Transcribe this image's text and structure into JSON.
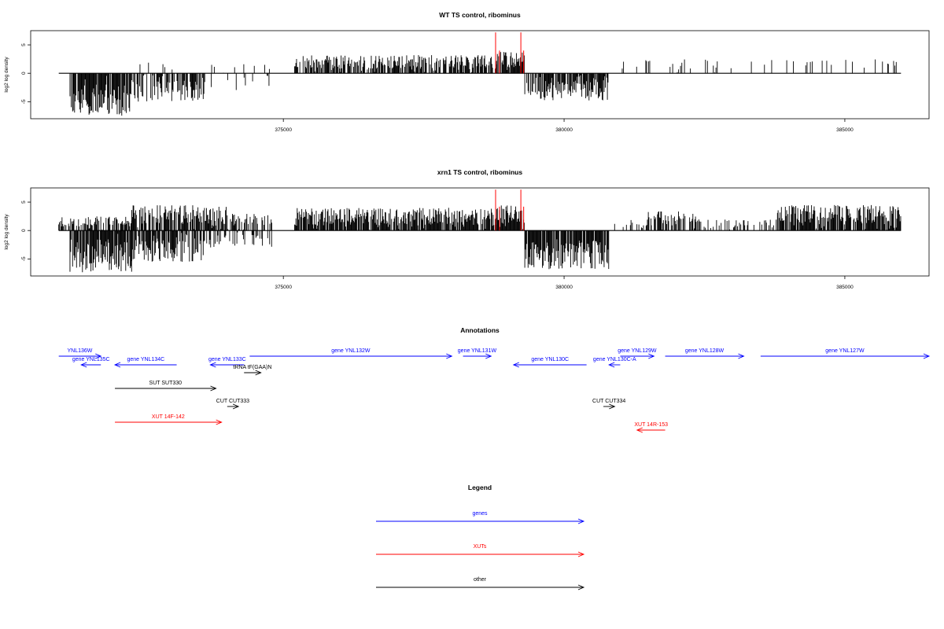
{
  "chart_data": [
    {
      "type": "bar",
      "title": "WT TS control, ribominus",
      "ylabel": "log2 log density",
      "ylim": [
        -8,
        7.5
      ],
      "yticks": [
        -5,
        0,
        5
      ],
      "xlim": [
        370500,
        386500
      ],
      "xticks": [
        375000,
        380000,
        385000
      ],
      "track_range": [
        371000,
        386000
      ],
      "grid": false,
      "colors": {
        "density": "#000000",
        "peaks": "#ff0000"
      },
      "red_peaks": [
        {
          "x": 378780,
          "value": 7.2
        },
        {
          "x": 378850,
          "value": 4.0
        },
        {
          "x": 379230,
          "value": 7.2
        },
        {
          "x": 379280,
          "value": 4.0
        }
      ],
      "regions": [
        {
          "start": 371200,
          "end": 372300,
          "sign": -1,
          "density": 0.85,
          "max": 7.5
        },
        {
          "start": 372300,
          "end": 373600,
          "sign": -1,
          "density": 0.6,
          "max": 5.0
        },
        {
          "start": 372400,
          "end": 373400,
          "sign": 1,
          "density": 0.12,
          "max": 2.0
        },
        {
          "start": 373600,
          "end": 374800,
          "sign": -1,
          "density": 0.08,
          "max": 3.0
        },
        {
          "start": 373700,
          "end": 374800,
          "sign": 1,
          "density": 0.05,
          "max": 2.0
        },
        {
          "start": 375200,
          "end": 378800,
          "sign": 1,
          "density": 0.75,
          "max": 3.2
        },
        {
          "start": 378800,
          "end": 379300,
          "sign": 1,
          "density": 0.9,
          "max": 3.8
        },
        {
          "start": 379300,
          "end": 380800,
          "sign": -1,
          "density": 0.8,
          "max": 4.8
        },
        {
          "start": 381000,
          "end": 386000,
          "sign": 1,
          "density": 0.1,
          "max": 2.5
        }
      ]
    },
    {
      "type": "bar",
      "title": "xrn1 TS control, ribominus",
      "ylabel": "log2 log density",
      "ylim": [
        -8,
        7.5
      ],
      "yticks": [
        -5,
        0,
        5
      ],
      "xlim": [
        370500,
        386500
      ],
      "xticks": [
        375000,
        380000,
        385000
      ],
      "track_range": [
        371000,
        386000
      ],
      "grid": false,
      "colors": {
        "density": "#000000",
        "peaks": "#ff0000"
      },
      "red_peaks": [
        {
          "x": 378780,
          "value": 7.2
        },
        {
          "x": 378850,
          "value": 4.2
        },
        {
          "x": 379230,
          "value": 7.2
        },
        {
          "x": 379280,
          "value": 4.2
        }
      ],
      "regions": [
        {
          "start": 371000,
          "end": 371200,
          "sign": 1,
          "density": 0.6,
          "max": 2.5
        },
        {
          "start": 371200,
          "end": 372300,
          "sign": -1,
          "density": 0.9,
          "max": 7.5
        },
        {
          "start": 371200,
          "end": 372300,
          "sign": 1,
          "density": 0.5,
          "max": 2.5
        },
        {
          "start": 372300,
          "end": 373600,
          "sign": -1,
          "density": 0.8,
          "max": 5.5
        },
        {
          "start": 372300,
          "end": 374000,
          "sign": 1,
          "density": 0.7,
          "max": 4.5
        },
        {
          "start": 373600,
          "end": 374800,
          "sign": -1,
          "density": 0.4,
          "max": 3.0
        },
        {
          "start": 374000,
          "end": 374800,
          "sign": 1,
          "density": 0.5,
          "max": 3.0
        },
        {
          "start": 375200,
          "end": 378800,
          "sign": 1,
          "density": 0.85,
          "max": 4.0
        },
        {
          "start": 378800,
          "end": 379300,
          "sign": 1,
          "density": 0.95,
          "max": 4.5
        },
        {
          "start": 379300,
          "end": 380800,
          "sign": -1,
          "density": 0.9,
          "max": 6.8
        },
        {
          "start": 380900,
          "end": 381600,
          "sign": 1,
          "density": 0.3,
          "max": 2.0
        },
        {
          "start": 381500,
          "end": 382400,
          "sign": 1,
          "density": 0.7,
          "max": 3.5
        },
        {
          "start": 382400,
          "end": 383800,
          "sign": 1,
          "density": 0.2,
          "max": 2.0
        },
        {
          "start": 383800,
          "end": 386000,
          "sign": 1,
          "density": 0.85,
          "max": 4.5
        }
      ]
    }
  ],
  "annotations": {
    "title": "Annotations",
    "features": [
      {
        "label": "YNL136W",
        "start": 371000,
        "end": 371750,
        "strand": "+",
        "row": 0,
        "color": "#0000ff"
      },
      {
        "label": "gene YNL135C",
        "start": 371400,
        "end": 371750,
        "strand": "-",
        "row": 1,
        "color": "#0000ff"
      },
      {
        "label": "gene YNL134C",
        "start": 372000,
        "end": 373100,
        "strand": "-",
        "row": 1,
        "color": "#0000ff"
      },
      {
        "label": "gene YNL133C",
        "start": 373700,
        "end": 374300,
        "strand": "-",
        "row": 1,
        "color": "#0000ff"
      },
      {
        "label": "tRNA tF(GAA)N",
        "start": 374300,
        "end": 374600,
        "strand": "+",
        "row": 2,
        "color": "#000000"
      },
      {
        "label": "gene YNL132W",
        "start": 374400,
        "end": 378000,
        "strand": "+",
        "row": 0,
        "color": "#0000ff"
      },
      {
        "label": "gene YNL131W",
        "start": 378200,
        "end": 378700,
        "strand": "+",
        "row": 0,
        "color": "#0000ff"
      },
      {
        "label": "gene YNL130C",
        "start": 379100,
        "end": 380400,
        "strand": "-",
        "row": 1,
        "color": "#0000ff"
      },
      {
        "label": "gene YNL130C-A",
        "start": 380800,
        "end": 381000,
        "strand": "-",
        "row": 1,
        "color": "#0000ff"
      },
      {
        "label": "gene YNL129W",
        "start": 381000,
        "end": 381600,
        "strand": "+",
        "row": 0,
        "color": "#0000ff"
      },
      {
        "label": "gene YNL128W",
        "start": 381800,
        "end": 383200,
        "strand": "+",
        "row": 0,
        "color": "#0000ff"
      },
      {
        "label": "gene YNL127W",
        "start": 383500,
        "end": 386500,
        "strand": "+",
        "row": 0,
        "color": "#0000ff"
      },
      {
        "label": "SUT SUT330",
        "start": 372000,
        "end": 373800,
        "strand": "+",
        "row": 3,
        "color": "#000000"
      },
      {
        "label": "CUT CUT333",
        "start": 374000,
        "end": 374200,
        "strand": "+",
        "row": 4,
        "color": "#000000"
      },
      {
        "label": "CUT CUT334",
        "start": 380700,
        "end": 380900,
        "strand": "+",
        "row": 4,
        "color": "#000000"
      },
      {
        "label": "XUT 14F-142",
        "start": 372000,
        "end": 373900,
        "strand": "+",
        "row": 5,
        "color": "#ff0000"
      },
      {
        "label": "XUT 14R-153",
        "start": 381300,
        "end": 381800,
        "strand": "-",
        "row": 6,
        "color": "#ff0000"
      }
    ]
  },
  "legend": {
    "title": "Legend",
    "items": [
      {
        "label": "genes",
        "color": "#0000ff"
      },
      {
        "label": "XUTs",
        "color": "#ff0000"
      },
      {
        "label": "other",
        "color": "#000000"
      }
    ]
  }
}
